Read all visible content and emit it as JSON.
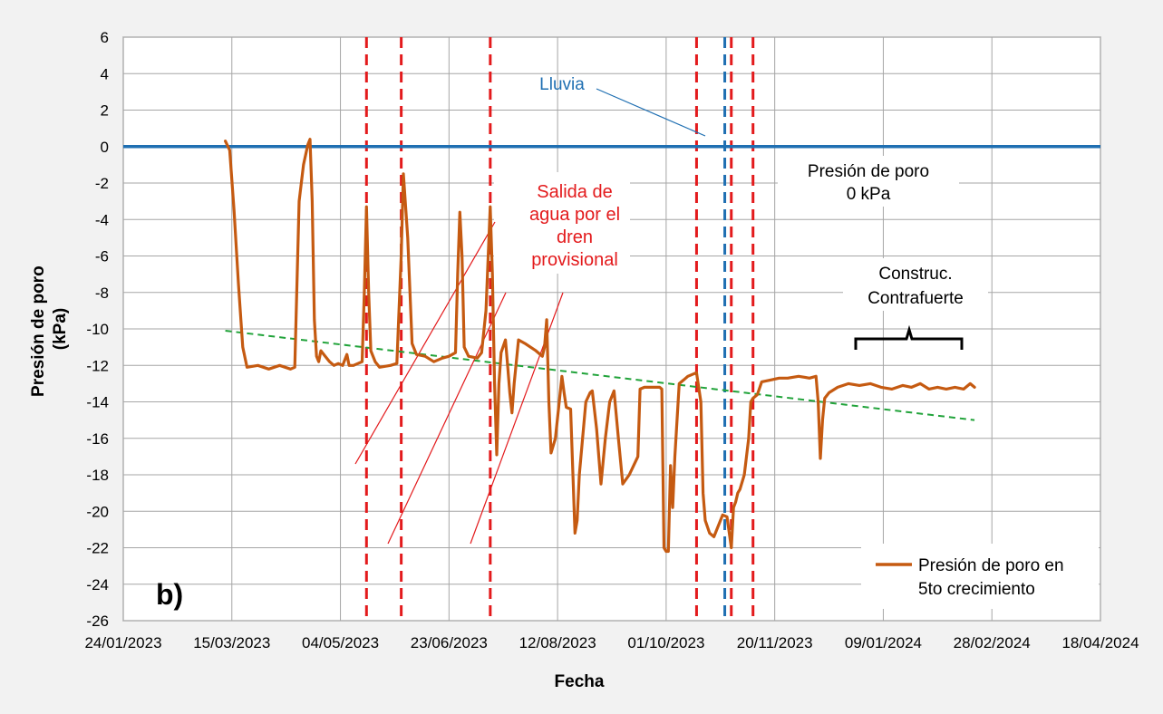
{
  "chart_data": {
    "type": "line",
    "panel_label": "b)",
    "xlabel": "Fecha",
    "ylabel_lines": [
      "Presión de poro",
      "(kPa)"
    ],
    "ylim": [
      -26,
      6
    ],
    "yticks": [
      6,
      4,
      2,
      0,
      -2,
      -4,
      -6,
      -8,
      -10,
      -12,
      -14,
      -16,
      -18,
      -20,
      -22,
      -24,
      -26
    ],
    "ytick_labels": [
      "6",
      "4",
      "2",
      "0",
      "-2",
      "-4",
      "-6",
      "-8",
      "-10",
      "-12",
      "-14",
      "-16",
      "-18",
      "-20",
      "-22",
      "-24",
      "-26"
    ],
    "xlim": [
      "2023-01-24",
      "2024-04-18"
    ],
    "xticks": [
      "2023-01-24",
      "2023-03-15",
      "2023-05-04",
      "2023-06-23",
      "2023-08-12",
      "2023-10-01",
      "2023-11-20",
      "2024-01-09",
      "2024-02-28",
      "2024-04-18"
    ],
    "xtick_labels": [
      "24/01/2023",
      "15/03/2023",
      "04/05/2023",
      "23/06/2023",
      "12/08/2023",
      "01/10/2023",
      "20/11/2023",
      "09/01/2024",
      "28/02/2024",
      "18/04/2024"
    ],
    "grid": true,
    "legend_position": "bottom-right",
    "colors": {
      "series": "#c55a11",
      "zero_line": "#1f6fb2",
      "trend": "#21a33a",
      "drain_lines": "#e31a1c",
      "rain_line": "#1f6fb2",
      "grid": "#a6a6a6",
      "plot_border": "#808080"
    },
    "series": [
      {
        "name": "Presión de poro en 5to crecimiento",
        "points": [
          [
            "2023-03-12",
            0.3
          ],
          [
            "2023-03-14",
            -0.2
          ],
          [
            "2023-03-16",
            -3.5
          ],
          [
            "2023-03-18",
            -7.5
          ],
          [
            "2023-03-20",
            -11.0
          ],
          [
            "2023-03-22",
            -12.1
          ],
          [
            "2023-03-27",
            -12.0
          ],
          [
            "2023-04-01",
            -12.2
          ],
          [
            "2023-04-06",
            -12.0
          ],
          [
            "2023-04-11",
            -12.2
          ],
          [
            "2023-04-13",
            -12.1
          ],
          [
            "2023-04-15",
            -3.0
          ],
          [
            "2023-04-17",
            -1.0
          ],
          [
            "2023-04-19",
            0.1
          ],
          [
            "2023-04-20",
            0.4
          ],
          [
            "2023-04-21",
            -3.0
          ],
          [
            "2023-04-22",
            -9.5
          ],
          [
            "2023-04-23",
            -11.5
          ],
          [
            "2023-04-24",
            -11.8
          ],
          [
            "2023-04-25",
            -11.2
          ],
          [
            "2023-04-27",
            -11.5
          ],
          [
            "2023-04-29",
            -11.8
          ],
          [
            "2023-05-01",
            -12.0
          ],
          [
            "2023-05-03",
            -11.9
          ],
          [
            "2023-05-05",
            -12.0
          ],
          [
            "2023-05-07",
            -11.4
          ],
          [
            "2023-05-08",
            -12.0
          ],
          [
            "2023-05-10",
            -12.0
          ],
          [
            "2023-05-14",
            -11.8
          ],
          [
            "2023-05-15",
            -8.0
          ],
          [
            "2023-05-16",
            -3.3
          ],
          [
            "2023-05-17",
            -8.0
          ],
          [
            "2023-05-18",
            -11.2
          ],
          [
            "2023-05-20",
            -11.8
          ],
          [
            "2023-05-22",
            -12.1
          ],
          [
            "2023-05-27",
            -12.0
          ],
          [
            "2023-05-30",
            -11.9
          ],
          [
            "2023-06-01",
            -6.0
          ],
          [
            "2023-06-02",
            -1.5
          ],
          [
            "2023-06-04",
            -5.0
          ],
          [
            "2023-06-06",
            -10.8
          ],
          [
            "2023-06-08",
            -11.4
          ],
          [
            "2023-06-12",
            -11.5
          ],
          [
            "2023-06-16",
            -11.8
          ],
          [
            "2023-06-20",
            -11.6
          ],
          [
            "2023-06-23",
            -11.5
          ],
          [
            "2023-06-26",
            -11.3
          ],
          [
            "2023-06-27",
            -7.0
          ],
          [
            "2023-06-28",
            -3.6
          ],
          [
            "2023-06-29",
            -6.0
          ],
          [
            "2023-06-30",
            -11.0
          ],
          [
            "2023-07-02",
            -11.5
          ],
          [
            "2023-07-06",
            -11.6
          ],
          [
            "2023-07-08",
            -11.3
          ],
          [
            "2023-07-10",
            -9.0
          ],
          [
            "2023-07-12",
            -3.3
          ],
          [
            "2023-07-13",
            -7.0
          ],
          [
            "2023-07-14",
            -13.0
          ],
          [
            "2023-07-15",
            -16.9
          ],
          [
            "2023-07-16",
            -13.0
          ],
          [
            "2023-07-17",
            -11.3
          ],
          [
            "2023-07-19",
            -10.6
          ],
          [
            "2023-07-20",
            -12.0
          ],
          [
            "2023-07-21",
            -13.5
          ],
          [
            "2023-07-22",
            -14.6
          ],
          [
            "2023-07-23",
            -13.0
          ],
          [
            "2023-07-25",
            -10.6
          ],
          [
            "2023-07-28",
            -10.8
          ],
          [
            "2023-08-02",
            -11.2
          ],
          [
            "2023-08-05",
            -11.5
          ],
          [
            "2023-08-06",
            -11.0
          ],
          [
            "2023-08-07",
            -9.5
          ],
          [
            "2023-08-08",
            -14.0
          ],
          [
            "2023-08-09",
            -16.8
          ],
          [
            "2023-08-11",
            -16.0
          ],
          [
            "2023-08-14",
            -12.6
          ],
          [
            "2023-08-15",
            -13.5
          ],
          [
            "2023-08-16",
            -14.3
          ],
          [
            "2023-08-18",
            -14.4
          ],
          [
            "2023-08-20",
            -21.2
          ],
          [
            "2023-08-21",
            -20.5
          ],
          [
            "2023-08-22",
            -18.0
          ],
          [
            "2023-08-25",
            -14.0
          ],
          [
            "2023-08-27",
            -13.5
          ],
          [
            "2023-08-28",
            -13.4
          ],
          [
            "2023-08-30",
            -15.5
          ],
          [
            "2023-09-01",
            -18.5
          ],
          [
            "2023-09-03",
            -16.0
          ],
          [
            "2023-09-05",
            -14.0
          ],
          [
            "2023-09-07",
            -13.4
          ],
          [
            "2023-09-09",
            -16.0
          ],
          [
            "2023-09-11",
            -18.5
          ],
          [
            "2023-09-14",
            -18.0
          ],
          [
            "2023-09-18",
            -17.0
          ],
          [
            "2023-09-19",
            -13.3
          ],
          [
            "2023-09-21",
            -13.2
          ],
          [
            "2023-09-25",
            -13.2
          ],
          [
            "2023-09-28",
            -13.2
          ],
          [
            "2023-09-29",
            -13.3
          ],
          [
            "2023-09-30",
            -22.0
          ],
          [
            "2023-10-01",
            -22.2
          ],
          [
            "2023-10-02",
            -22.2
          ],
          [
            "2023-10-03",
            -17.5
          ],
          [
            "2023-10-04",
            -19.8
          ],
          [
            "2023-10-05",
            -17.0
          ],
          [
            "2023-10-07",
            -13.0
          ],
          [
            "2023-10-09",
            -12.8
          ],
          [
            "2023-10-11",
            -12.6
          ],
          [
            "2023-10-13",
            -12.5
          ],
          [
            "2023-10-15",
            -12.4
          ],
          [
            "2023-10-17",
            -14.0
          ],
          [
            "2023-10-18",
            -19.0
          ],
          [
            "2023-10-19",
            -20.5
          ],
          [
            "2023-10-21",
            -21.2
          ],
          [
            "2023-10-23",
            -21.4
          ],
          [
            "2023-10-25",
            -20.8
          ],
          [
            "2023-10-27",
            -20.2
          ],
          [
            "2023-10-29",
            -20.3
          ],
          [
            "2023-10-31",
            -22.0
          ],
          [
            "2023-11-01",
            -19.8
          ],
          [
            "2023-11-02",
            -19.5
          ],
          [
            "2023-11-03",
            -19.0
          ],
          [
            "2023-11-04",
            -18.8
          ],
          [
            "2023-11-06",
            -18.0
          ],
          [
            "2023-11-08",
            -16.0
          ],
          [
            "2023-11-09",
            -14.0
          ],
          [
            "2023-11-10",
            -13.8
          ],
          [
            "2023-11-12",
            -13.6
          ],
          [
            "2023-11-14",
            -12.9
          ],
          [
            "2023-11-18",
            -12.8
          ],
          [
            "2023-11-22",
            -12.7
          ],
          [
            "2023-11-26",
            -12.7
          ],
          [
            "2023-12-01",
            -12.6
          ],
          [
            "2023-12-06",
            -12.7
          ],
          [
            "2023-12-09",
            -12.6
          ],
          [
            "2023-12-10",
            -14.0
          ],
          [
            "2023-12-11",
            -17.1
          ],
          [
            "2023-12-12",
            -15.0
          ],
          [
            "2023-12-13",
            -13.8
          ],
          [
            "2023-12-15",
            -13.5
          ],
          [
            "2023-12-19",
            -13.2
          ],
          [
            "2023-12-24",
            -13.0
          ],
          [
            "2023-12-29",
            -13.1
          ],
          [
            "2024-01-03",
            -13.0
          ],
          [
            "2024-01-08",
            -13.2
          ],
          [
            "2024-01-13",
            -13.3
          ],
          [
            "2024-01-18",
            -13.1
          ],
          [
            "2024-01-22",
            -13.2
          ],
          [
            "2024-01-26",
            -13.0
          ],
          [
            "2024-01-30",
            -13.3
          ],
          [
            "2024-02-03",
            -13.2
          ],
          [
            "2024-02-07",
            -13.3
          ],
          [
            "2024-02-11",
            -13.2
          ],
          [
            "2024-02-15",
            -13.3
          ],
          [
            "2024-02-18",
            -13.0
          ],
          [
            "2024-02-20",
            -13.2
          ]
        ]
      }
    ],
    "reference_line": {
      "y": 0
    },
    "trend_line": {
      "x": [
        "2023-03-12",
        "2024-02-20"
      ],
      "y": [
        -10.1,
        -15.0
      ]
    },
    "drain_event_lines": [
      "2023-05-16",
      "2023-06-01",
      "2023-07-12",
      "2023-10-15",
      "2023-10-31",
      "2023-11-10"
    ],
    "rain_line": "2023-10-28",
    "annotations": {
      "lluvia": "Lluvia",
      "drain_label": [
        "Salida de",
        "agua por el",
        "dren",
        "provisional"
      ],
      "zero_label": [
        "Presión de poro",
        "0 kPa"
      ],
      "construction_label": [
        "Construc.",
        "Contrafuerte"
      ]
    }
  }
}
